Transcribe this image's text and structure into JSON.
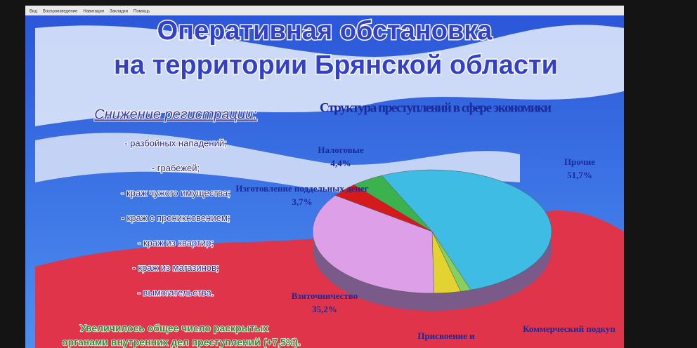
{
  "menu": [
    "Вид",
    "Воспроизведение",
    "Навигация",
    "Закладки",
    "Помощь"
  ],
  "slide": {
    "title": [
      "Оперативная обстановка",
      "на территории Брянской области"
    ],
    "subtitle": "Снижение регистрации:",
    "items": [
      "- разбойных нападений;",
      "- грабежей;",
      "- краж чужого имущества;",
      "- краж с проникновением;",
      "- краж из квартир;",
      "- краж из магазинов;",
      "- вымогательства."
    ],
    "footer": [
      "Увеличилось общее число раскрытых",
      "органами внутренних дел преступлений (+7,5%)."
    ]
  },
  "chart_data": {
    "type": "pie",
    "title": "Структура преступлений в сфере экономики",
    "categories": [
      "Прочие",
      "Коммерческий подкуп",
      "Присвоение и",
      "Взяточничество",
      "Изготовление поддельных денег",
      "Налоговые"
    ],
    "values": [
      51.7,
      1.4,
      3.6,
      35.2,
      3.7,
      4.4
    ],
    "value_labels": [
      "51,7%",
      null,
      null,
      "35,2%",
      "3,7%",
      "4,4%"
    ],
    "colors": [
      "#3fbce4",
      "#86d060",
      "#e2d232",
      "#dc9fe8",
      "#d41a1a",
      "#3cb24e"
    ]
  }
}
